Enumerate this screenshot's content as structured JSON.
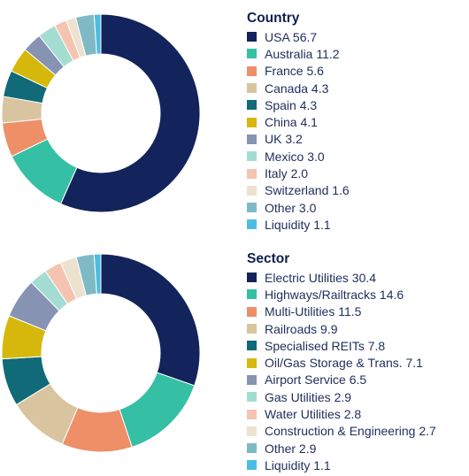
{
  "chart_data": [
    {
      "type": "pie",
      "variant": "donut",
      "title": "Country",
      "legend_placement": "right",
      "slices": [
        {
          "label": "USA 56.7",
          "value": 56.7,
          "color": "#13235b"
        },
        {
          "label": "Australia 11.2",
          "value": 11.2,
          "color": "#35bfa4"
        },
        {
          "label": "France 5.6",
          "value": 5.6,
          "color": "#ee8f68"
        },
        {
          "label": "Canada 4.3",
          "value": 4.3,
          "color": "#d9c4a0"
        },
        {
          "label": "Spain 4.3",
          "value": 4.3,
          "color": "#106a78"
        },
        {
          "label": "China 4.1",
          "value": 4.1,
          "color": "#d6b80c"
        },
        {
          "label": "UK 3.2",
          "value": 3.2,
          "color": "#8793b2"
        },
        {
          "label": "Mexico 3.0",
          "value": 3.0,
          "color": "#a3ddd2"
        },
        {
          "label": "Italy 2.0",
          "value": 2.0,
          "color": "#f5c4b1"
        },
        {
          "label": "Switzerland 1.6",
          "value": 1.6,
          "color": "#ede2cf"
        },
        {
          "label": "Other 3.0",
          "value": 3.0,
          "color": "#7fb9c6"
        },
        {
          "label": "Liquidity 1.1",
          "value": 1.1,
          "color": "#4cbde0"
        }
      ]
    },
    {
      "type": "pie",
      "variant": "donut",
      "title": "Sector",
      "legend_placement": "right",
      "slices": [
        {
          "label": "Electric Utilities 30.4",
          "value": 30.4,
          "color": "#13235b"
        },
        {
          "label": "Highways/Railtracks 14.6",
          "value": 14.6,
          "color": "#35bfa4"
        },
        {
          "label": "Multi-Utilities 11.5",
          "value": 11.5,
          "color": "#ee8f68"
        },
        {
          "label": "Railroads 9.9",
          "value": 9.9,
          "color": "#d9c4a0"
        },
        {
          "label": "Specialised REITs 7.8",
          "value": 7.8,
          "color": "#106a78"
        },
        {
          "label": "Oil/Gas Storage & Trans. 7.1",
          "value": 7.1,
          "color": "#d6b80c"
        },
        {
          "label": "Airport Service 6.5",
          "value": 6.5,
          "color": "#8793b2"
        },
        {
          "label": "Gas Utilities 2.9",
          "value": 2.9,
          "color": "#a3ddd2"
        },
        {
          "label": "Water Utilities 2.8",
          "value": 2.8,
          "color": "#f5c4b1"
        },
        {
          "label": "Construction & Engineering 2.7",
          "value": 2.7,
          "color": "#ede2cf"
        },
        {
          "label": "Other 2.9",
          "value": 2.9,
          "color": "#7fb9c6"
        },
        {
          "label": "Liquidity 1.1",
          "value": 1.1,
          "color": "#4cbde0"
        }
      ]
    }
  ]
}
